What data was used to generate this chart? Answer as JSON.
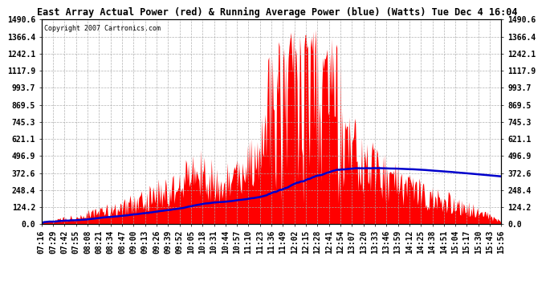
{
  "title": "East Array Actual Power (red) & Running Average Power (blue) (Watts) Tue Dec 4 16:04",
  "copyright": "Copyright 2007 Cartronics.com",
  "y_max": 1490.6,
  "y_ticks": [
    0.0,
    124.2,
    248.4,
    372.6,
    496.9,
    621.1,
    745.3,
    869.5,
    993.7,
    1117.9,
    1242.1,
    1366.4,
    1490.6
  ],
  "bg_color": "#ffffff",
  "plot_bg_color": "#ffffff",
  "red_color": "#ff0000",
  "blue_color": "#0000cc",
  "grid_color": "#aaaaaa",
  "x_labels": [
    "07:16",
    "07:29",
    "07:42",
    "07:55",
    "08:08",
    "08:21",
    "08:34",
    "08:47",
    "09:00",
    "09:13",
    "09:26",
    "09:39",
    "09:52",
    "10:05",
    "10:18",
    "10:31",
    "10:44",
    "10:57",
    "11:10",
    "11:23",
    "11:36",
    "11:49",
    "12:02",
    "12:15",
    "12:28",
    "12:41",
    "12:54",
    "13:07",
    "13:20",
    "13:33",
    "13:46",
    "13:59",
    "14:12",
    "14:25",
    "14:38",
    "14:51",
    "15:04",
    "15:17",
    "15:30",
    "15:43",
    "15:56"
  ]
}
